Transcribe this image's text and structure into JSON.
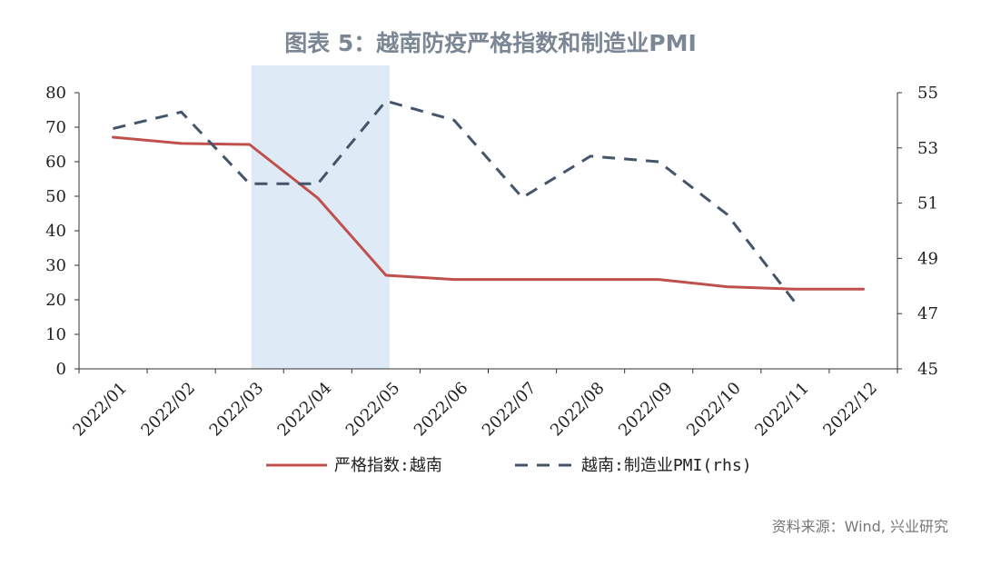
{
  "title": "图表 5：越南防疫严格指数和制造业PMI",
  "source": "资料来源：Wind, 兴业研究",
  "chart_data": {
    "type": "line",
    "categories": [
      "2022/01",
      "2022/02",
      "2022/03",
      "2022/04",
      "2022/05",
      "2022/06",
      "2022/07",
      "2022/08",
      "2022/09",
      "2022/10",
      "2022/11",
      "2022/12"
    ],
    "y_left": {
      "ticks": [
        "0",
        "10",
        "20",
        "30",
        "40",
        "50",
        "60",
        "70",
        "80"
      ],
      "ylim": [
        0,
        80
      ]
    },
    "y_right": {
      "ticks": [
        "45",
        "47",
        "49",
        "51",
        "53",
        "55"
      ],
      "ylim": [
        45,
        55
      ]
    },
    "highlight_range": [
      "2022/03",
      "2022/05"
    ],
    "series": [
      {
        "name": "严格指数:越南",
        "axis": "left",
        "style": "solid",
        "color": "#c0504d",
        "points": [
          {
            "x": "2022/01",
            "y": 67.1
          },
          {
            "x": "2022/02",
            "y": 65.3
          },
          {
            "x": "2022/03",
            "y": 65.0
          },
          {
            "x": "2022/04",
            "y": 49.5
          },
          {
            "x": "2022/05",
            "y": 27.1
          },
          {
            "x": "2022/06",
            "y": 25.9
          },
          {
            "x": "2022/07",
            "y": 25.9
          },
          {
            "x": "2022/08",
            "y": 25.9
          },
          {
            "x": "2022/09",
            "y": 25.9
          },
          {
            "x": "2022/10",
            "y": 23.8
          },
          {
            "x": "2022/11",
            "y": 23.1
          },
          {
            "x": "2022/12",
            "y": 23.1
          }
        ]
      },
      {
        "name": "越南:制造业PMI(rhs)",
        "axis": "right",
        "style": "dashed",
        "color": "#44546a",
        "points": [
          {
            "x": "2022/01",
            "y": 53.7
          },
          {
            "x": "2022/02",
            "y": 54.3
          },
          {
            "x": "2022/03",
            "y": 51.7
          },
          {
            "x": "2022/04",
            "y": 51.7
          },
          {
            "x": "2022/05",
            "y": 54.7
          },
          {
            "x": "2022/06",
            "y": 54.0
          },
          {
            "x": "2022/07",
            "y": 51.2
          },
          {
            "x": "2022/08",
            "y": 52.7
          },
          {
            "x": "2022/09",
            "y": 52.5
          },
          {
            "x": "2022/10",
            "y": 50.6
          },
          {
            "x": "2022/11",
            "y": 47.4
          }
        ]
      }
    ],
    "legend": [
      {
        "label": "严格指数:越南",
        "style": "solid",
        "color": "#c0504d"
      },
      {
        "label": "越南:制造业PMI(rhs)",
        "style": "dashed",
        "color": "#44546a"
      }
    ],
    "legend_position": "bottom",
    "grid": false
  }
}
